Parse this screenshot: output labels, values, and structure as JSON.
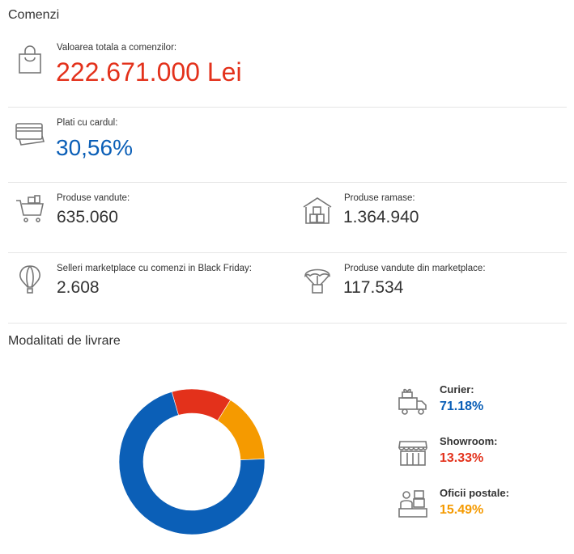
{
  "orders": {
    "title": "Comenzi",
    "total_value": {
      "label": "Valoarea totala a comenzilor:",
      "value": "222.671.000 Lei",
      "icon": "shopping-bag-icon"
    },
    "card_payments": {
      "label": "Plati cu cardul:",
      "value": "30,56%",
      "icon": "credit-card-icon"
    },
    "products_sold": {
      "label": "Produse vandute:",
      "value": "635.060",
      "icon": "shopping-cart-icon"
    },
    "products_remaining": {
      "label": "Produse ramase:",
      "value": "1.364.940",
      "icon": "warehouse-icon"
    },
    "marketplace_sellers": {
      "label": "Selleri marketplace cu comenzi in Black Friday:",
      "value": "2.608",
      "icon": "hot-air-balloon-icon"
    },
    "marketplace_products": {
      "label": "Produse vandute din marketplace:",
      "value": "117.534",
      "icon": "parachute-package-icon"
    }
  },
  "delivery": {
    "title": "Modalitati de livrare",
    "legend": [
      {
        "label": "Curier:",
        "value": "71.18%",
        "color": "#0b5fb7",
        "icon": "delivery-truck-icon"
      },
      {
        "label": "Showroom:",
        "value": "13.33%",
        "color": "#e3311b",
        "icon": "storefront-icon"
      },
      {
        "label": "Oficii postale:",
        "value": "15.49%",
        "color": "#f59a00",
        "icon": "post-office-clerk-icon"
      }
    ]
  },
  "colors": {
    "accent_red": "#e3311b",
    "accent_blue": "#0b5fb7",
    "accent_orange": "#f59a00"
  },
  "chart_data": {
    "type": "pie",
    "variant": "donut",
    "categories": [
      "Curier",
      "Showroom",
      "Oficii postale"
    ],
    "values": [
      71.18,
      13.33,
      15.49
    ],
    "colors": [
      "#0b5fb7",
      "#e3311b",
      "#f59a00"
    ],
    "title": "Modalitati de livrare"
  }
}
